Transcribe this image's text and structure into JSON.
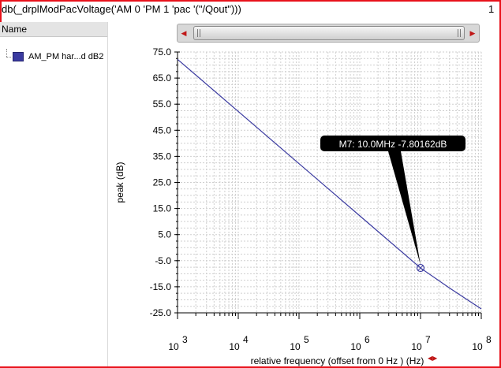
{
  "window": {
    "title": "db(_drplModPacVoltage('AM 0 'PM 1 'pac '(\"/Qout\")))",
    "subwindow_number": "1"
  },
  "legend_pane": {
    "header": "Name",
    "items": [
      {
        "label": "AM_PM har...d dB2",
        "color": "#3a3aa0"
      }
    ]
  },
  "colors": {
    "frame_border": "#e8121b",
    "trace": "#3a3aa0",
    "grid": "#cfcfcf",
    "marker_label_bg": "#000000"
  },
  "chart_data": {
    "type": "line",
    "xlabel": "relative frequency (offset from 0 Hz ) (Hz)",
    "ylabel": "peak (dB)",
    "x_scale": "log",
    "xlim": [
      1000,
      100000000
    ],
    "ylim": [
      -25.0,
      75.0
    ],
    "x_tick_labels": [
      {
        "base": "10",
        "exp": "3",
        "value": 1000
      },
      {
        "base": "10",
        "exp": "4",
        "value": 10000
      },
      {
        "base": "10",
        "exp": "5",
        "value": 100000
      },
      {
        "base": "10",
        "exp": "6",
        "value": 1000000
      },
      {
        "base": "10",
        "exp": "7",
        "value": 10000000
      },
      {
        "base": "10",
        "exp": "8",
        "value": 100000000
      }
    ],
    "y_ticks": [
      75.0,
      65.0,
      55.0,
      45.0,
      35.0,
      25.0,
      15.0,
      5.0,
      -5.0,
      -15.0,
      -25.0
    ],
    "y_tick_labels": [
      "75.0",
      "65.0",
      "55.0",
      "45.0",
      "35.0",
      "25.0",
      "15.0",
      "5.0",
      "-5.0",
      "-15.0",
      "-25.0"
    ],
    "grid": true,
    "series": [
      {
        "name": "AM_PM har...d dB2",
        "x": [
          1000,
          10000,
          100000,
          1000000,
          10000000,
          30000000,
          100000000
        ],
        "y": [
          72.2,
          52.2,
          32.2,
          12.2,
          -7.8,
          -15.5,
          -23.5
        ]
      }
    ],
    "marker": {
      "label": "M7: 10.0MHz -7.80162dB",
      "x": 10000000,
      "y": -7.80162
    }
  }
}
